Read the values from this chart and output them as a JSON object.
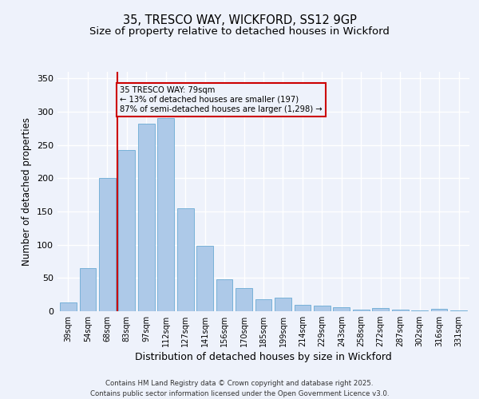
{
  "title1": "35, TRESCO WAY, WICKFORD, SS12 9GP",
  "title2": "Size of property relative to detached houses in Wickford",
  "xlabel": "Distribution of detached houses by size in Wickford",
  "ylabel": "Number of detached properties",
  "categories": [
    "39sqm",
    "54sqm",
    "68sqm",
    "83sqm",
    "97sqm",
    "112sqm",
    "127sqm",
    "141sqm",
    "156sqm",
    "170sqm",
    "185sqm",
    "199sqm",
    "214sqm",
    "229sqm",
    "243sqm",
    "258sqm",
    "272sqm",
    "287sqm",
    "302sqm",
    "316sqm",
    "331sqm"
  ],
  "values": [
    13,
    65,
    201,
    242,
    282,
    290,
    155,
    98,
    48,
    35,
    18,
    20,
    10,
    9,
    6,
    3,
    5,
    2,
    1,
    4,
    1
  ],
  "bar_color": "#adc9e8",
  "bar_edge_color": "#6aaad4",
  "vline_color": "#cc0000",
  "annotation_text": "35 TRESCO WAY: 79sqm\n← 13% of detached houses are smaller (197)\n87% of semi-detached houses are larger (1,298) →",
  "annotation_box_color": "#cc0000",
  "ylim": [
    0,
    360
  ],
  "yticks": [
    0,
    50,
    100,
    150,
    200,
    250,
    300,
    350
  ],
  "background_color": "#eef2fb",
  "footer1": "Contains HM Land Registry data © Crown copyright and database right 2025.",
  "footer2": "Contains public sector information licensed under the Open Government Licence v3.0.",
  "grid_color": "#ffffff",
  "title_fontsize": 10.5,
  "subtitle_fontsize": 9.5,
  "vline_index": 3
}
